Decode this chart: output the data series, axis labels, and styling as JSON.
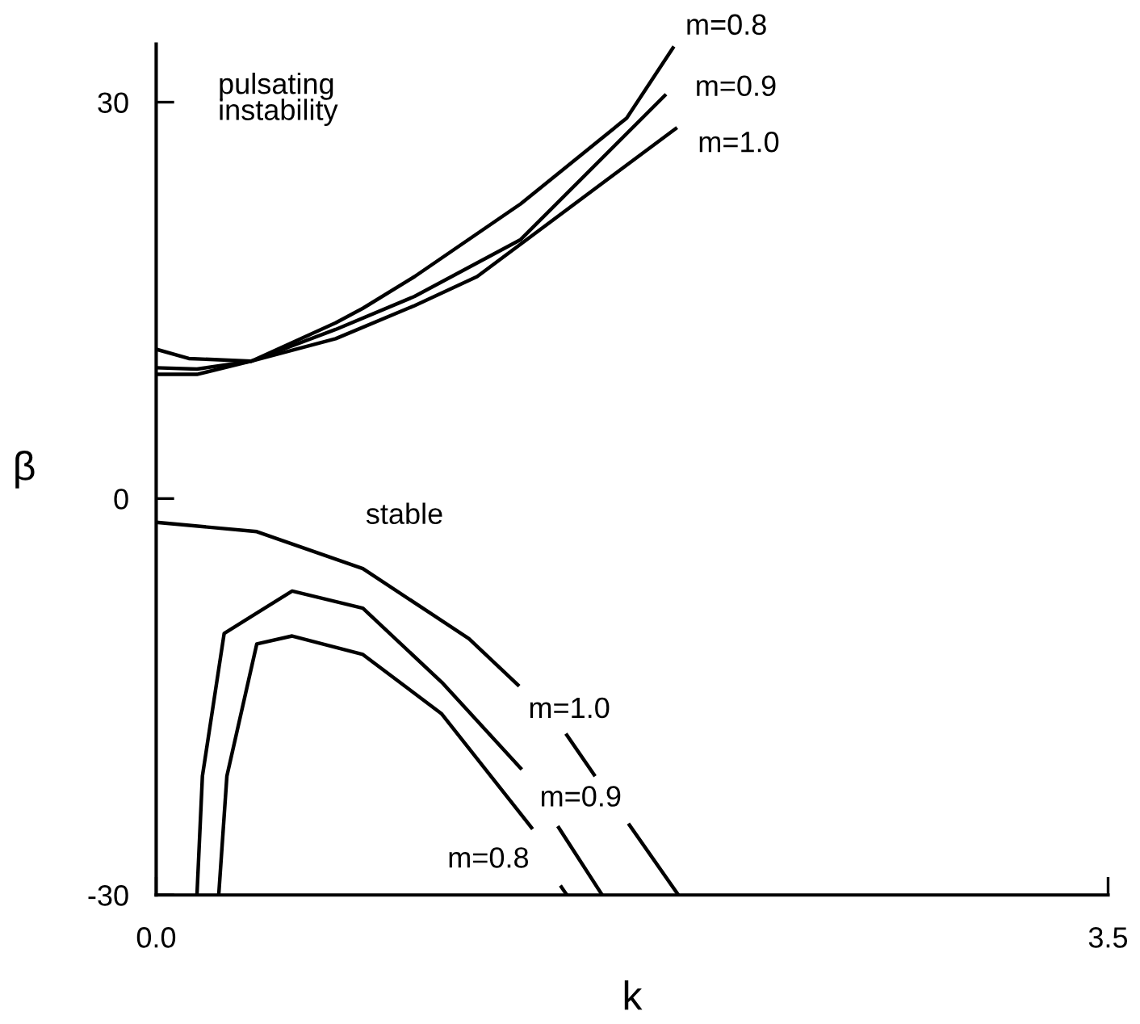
{
  "chart_data": {
    "type": "line",
    "xlabel": "k",
    "ylabel": "β",
    "xlim": [
      0,
      3.5
    ],
    "ylim": [
      -30,
      34.4
    ],
    "xticks": [
      {
        "value": 0,
        "label": "0.0"
      },
      {
        "value": 3.5,
        "label": "3.5"
      }
    ],
    "yticks": [
      -30,
      0,
      30
    ],
    "grid": false,
    "marker": "none",
    "line_style": "solid",
    "series": [
      {
        "color": "#000000",
        "x": [
          0,
          0.15,
          0.35,
          0.66,
          0.76,
          0.95,
          1.34,
          1.73,
          1.9
        ],
        "values": [
          9.4,
          9.4,
          10.4,
          13.3,
          14.4,
          16.8,
          22.3,
          28.8,
          34.1
        ]
      },
      {
        "color": "#000000",
        "x": [
          0,
          0.15,
          0.35,
          0.66,
          0.95,
          1.34,
          1.87
        ],
        "values": [
          9.9,
          9.8,
          10.4,
          12.8,
          15.3,
          19.6,
          30.5
        ]
      },
      {
        "color": "#000000",
        "x": [
          0,
          0.12,
          0.35,
          0.66,
          0.95,
          1.18,
          1.91
        ],
        "values": [
          11.3,
          10.6,
          10.4,
          12.1,
          14.6,
          16.8,
          28.0
        ]
      },
      {
        "color": "#000000",
        "x": [
          0.23,
          0.26,
          0.37,
          0.5,
          0.76,
          1.05,
          1.38,
          1.43,
          1.49,
          1.51
        ],
        "values": [
          -30,
          -21,
          -11.0,
          -10.4,
          -11.8,
          -16.3,
          -24.9,
          null,
          -29.4,
          -30
        ]
      },
      {
        "color": "#000000",
        "x": [
          0.15,
          0.17,
          0.25,
          0.5,
          0.76,
          1.05,
          1.34,
          1.41,
          1.48,
          1.64
        ],
        "values": [
          -30,
          -21,
          -10.2,
          -7.0,
          -8.3,
          -13.9,
          -20.4,
          null,
          -24.9,
          -30
        ]
      },
      {
        "color": "#000000",
        "x": [
          0,
          0.37,
          0.76,
          1.15,
          1.33,
          1.42,
          1.51,
          1.61,
          1.68,
          1.74,
          1.92
        ],
        "values": [
          -1.8,
          -2.5,
          -5.3,
          -10.6,
          -14.1,
          null,
          -17.9,
          -20.9,
          null,
          -24.7,
          -30
        ]
      }
    ],
    "annotations": [
      "pulsating\ninstability",
      "stable",
      "m=0.8",
      "m=0.9",
      "m=1.0",
      "m=1.0",
      "m=0.9",
      "m=0.8"
    ]
  }
}
